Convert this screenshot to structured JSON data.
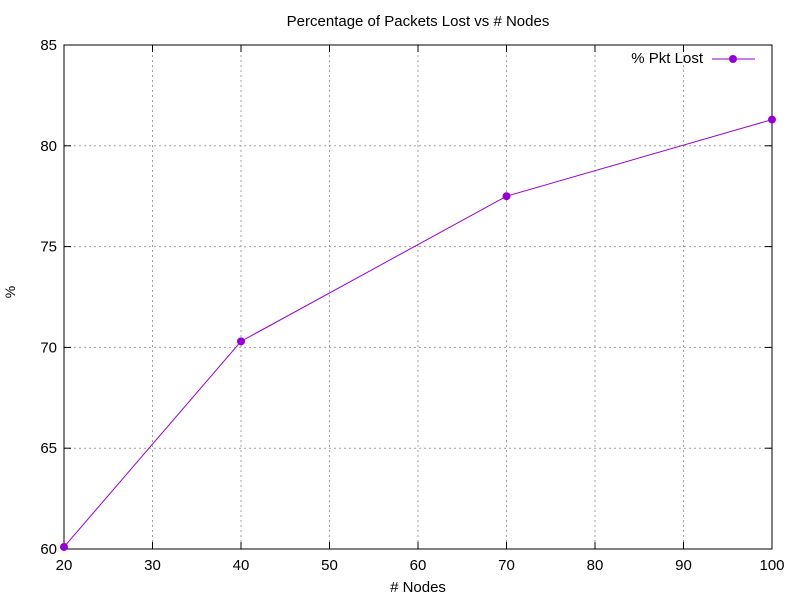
{
  "chart_data": {
    "type": "line",
    "title": "Percentage of Packets Lost vs # Nodes",
    "xlabel": "# Nodes",
    "ylabel": "%",
    "xlim": [
      20,
      100
    ],
    "ylim": [
      60,
      85
    ],
    "xticks": [
      20,
      30,
      40,
      50,
      60,
      70,
      80,
      90,
      100
    ],
    "yticks": [
      60,
      65,
      70,
      75,
      80,
      85
    ],
    "grid": true,
    "legend_position": "top-right",
    "series": [
      {
        "name": "% Pkt Lost",
        "color": "#9400d3",
        "marker": "circle",
        "x": [
          20,
          40,
          70,
          100
        ],
        "y": [
          60.1,
          70.3,
          77.5,
          81.3
        ]
      }
    ]
  }
}
